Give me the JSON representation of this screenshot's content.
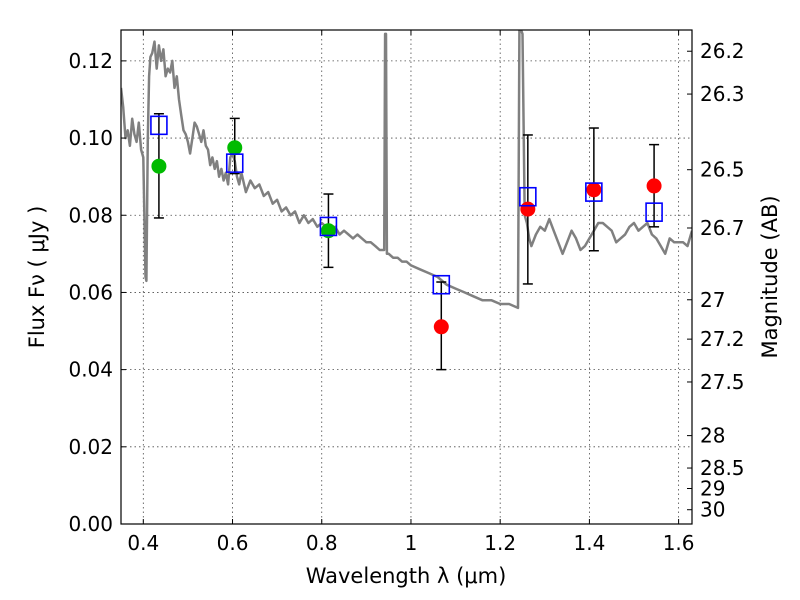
{
  "chart_data": {
    "type": "scatter",
    "title": "",
    "xlabel": "Wavelength  λ (μm)",
    "ylabel": "Flux  Fν  ( μJy )",
    "ylabel_right": "Magnitude (AB)",
    "xlim": [
      0.35,
      1.63
    ],
    "ylim": [
      0.0,
      0.128
    ],
    "grid": true,
    "x_ticks": [
      0.4,
      0.6,
      0.8,
      1.0,
      1.2,
      1.4,
      1.6
    ],
    "x_tick_labels": [
      "0.4",
      "0.6",
      "0.8",
      "1",
      "1.2",
      "1.4",
      "1.6"
    ],
    "y_ticks": [
      0.0,
      0.02,
      0.04,
      0.06,
      0.08,
      0.1,
      0.12
    ],
    "y_tick_labels": [
      "0.00",
      "0.02",
      "0.04",
      "0.06",
      "0.08",
      "0.10",
      "0.12"
    ],
    "right_ticks": [
      {
        "label": "26.2",
        "flux": 0.1225
      },
      {
        "label": "26.3",
        "flux": 0.1114
      },
      {
        "label": "26.5",
        "flux": 0.0918
      },
      {
        "label": "26.7",
        "flux": 0.0767
      },
      {
        "label": "27",
        "flux": 0.0581
      },
      {
        "label": "27.2",
        "flux": 0.0479
      },
      {
        "label": "27.5",
        "flux": 0.0368
      },
      {
        "label": "28",
        "flux": 0.0229
      },
      {
        "label": "28.5",
        "flux": 0.0145
      },
      {
        "label": "29",
        "flux": 0.0092
      },
      {
        "label": "30",
        "flux": 0.0037
      }
    ],
    "series": [
      {
        "color": "#808080",
        "kind": "line",
        "x": [
          0.35,
          0.355,
          0.36,
          0.365,
          0.37,
          0.375,
          0.38,
          0.385,
          0.39,
          0.395,
          0.4,
          0.405,
          0.407,
          0.41,
          0.413,
          0.416,
          0.42,
          0.425,
          0.43,
          0.435,
          0.44,
          0.445,
          0.45,
          0.455,
          0.46,
          0.465,
          0.47,
          0.475,
          0.48,
          0.485,
          0.49,
          0.495,
          0.5,
          0.505,
          0.51,
          0.515,
          0.52,
          0.525,
          0.53,
          0.535,
          0.54,
          0.545,
          0.55,
          0.555,
          0.56,
          0.565,
          0.57,
          0.575,
          0.58,
          0.585,
          0.59,
          0.595,
          0.6,
          0.605,
          0.61,
          0.615,
          0.62,
          0.63,
          0.64,
          0.65,
          0.66,
          0.67,
          0.68,
          0.69,
          0.7,
          0.71,
          0.72,
          0.73,
          0.74,
          0.75,
          0.76,
          0.77,
          0.78,
          0.79,
          0.8,
          0.81,
          0.82,
          0.83,
          0.84,
          0.85,
          0.86,
          0.87,
          0.88,
          0.89,
          0.9,
          0.91,
          0.92,
          0.93,
          0.94,
          0.942,
          0.944,
          0.946,
          0.948,
          0.95,
          0.96,
          0.97,
          0.98,
          0.99,
          1.0,
          1.02,
          1.04,
          1.06,
          1.08,
          1.1,
          1.12,
          1.14,
          1.16,
          1.18,
          1.2,
          1.22,
          1.24,
          1.243,
          1.245,
          1.247,
          1.25,
          1.255,
          1.26,
          1.265,
          1.27,
          1.28,
          1.29,
          1.3,
          1.31,
          1.32,
          1.33,
          1.34,
          1.35,
          1.36,
          1.37,
          1.38,
          1.39,
          1.4,
          1.41,
          1.42,
          1.43,
          1.44,
          1.45,
          1.46,
          1.47,
          1.48,
          1.49,
          1.5,
          1.51,
          1.52,
          1.53,
          1.54,
          1.55,
          1.56,
          1.57,
          1.58,
          1.59,
          1.6,
          1.61,
          1.62,
          1.63
        ],
        "y": [
          0.113,
          0.108,
          0.1,
          0.102,
          0.098,
          0.105,
          0.101,
          0.099,
          0.104,
          0.097,
          0.095,
          0.064,
          0.063,
          0.1,
          0.116,
          0.121,
          0.122,
          0.125,
          0.118,
          0.124,
          0.12,
          0.123,
          0.116,
          0.118,
          0.117,
          0.12,
          0.113,
          0.116,
          0.11,
          0.106,
          0.102,
          0.101,
          0.099,
          0.096,
          0.1,
          0.104,
          0.103,
          0.101,
          0.099,
          0.102,
          0.098,
          0.097,
          0.093,
          0.095,
          0.092,
          0.094,
          0.09,
          0.092,
          0.089,
          0.091,
          0.088,
          0.095,
          0.096,
          0.094,
          0.09,
          0.088,
          0.091,
          0.086,
          0.089,
          0.087,
          0.088,
          0.085,
          0.086,
          0.083,
          0.084,
          0.081,
          0.082,
          0.08,
          0.081,
          0.078,
          0.08,
          0.078,
          0.079,
          0.077,
          0.078,
          0.077,
          0.076,
          0.077,
          0.075,
          0.076,
          0.075,
          0.074,
          0.075,
          0.074,
          0.073,
          0.073,
          0.072,
          0.071,
          0.071,
          0.127,
          0.127,
          0.07,
          0.07,
          0.07,
          0.069,
          0.069,
          0.068,
          0.068,
          0.067,
          0.066,
          0.065,
          0.064,
          0.062,
          0.061,
          0.06,
          0.059,
          0.058,
          0.058,
          0.057,
          0.057,
          0.056,
          0.128,
          0.128,
          0.128,
          0.127,
          0.08,
          0.078,
          0.074,
          0.072,
          0.075,
          0.077,
          0.076,
          0.079,
          0.076,
          0.073,
          0.07,
          0.073,
          0.076,
          0.074,
          0.071,
          0.072,
          0.074,
          0.076,
          0.078,
          0.078,
          0.077,
          0.076,
          0.073,
          0.074,
          0.075,
          0.077,
          0.078,
          0.076,
          0.077,
          0.078,
          0.075,
          0.074,
          0.072,
          0.07,
          0.074,
          0.073,
          0.073,
          0.073,
          0.072,
          0.076
        ]
      },
      {
        "color": "#00bb00",
        "kind": "points",
        "x": [
          0.435,
          0.605,
          0.815
        ],
        "y": [
          0.0927,
          0.0975,
          0.076
        ]
      },
      {
        "color": "#ff0000",
        "kind": "points",
        "x": [
          1.068,
          1.262,
          1.41,
          1.545
        ],
        "y": [
          0.0511,
          0.0816,
          0.0866,
          0.0876
        ]
      },
      {
        "color": "#0000ff",
        "kind": "open-squares",
        "x": [
          0.435,
          0.605,
          0.815,
          1.068,
          1.262,
          1.41,
          1.545
        ],
        "y": [
          0.1033,
          0.0935,
          0.0771,
          0.062,
          0.0848,
          0.086,
          0.0808
        ]
      }
    ],
    "error_bars": [
      {
        "x": 0.435,
        "low": 0.0793,
        "high": 0.1063
      },
      {
        "x": 0.605,
        "low": 0.0908,
        "high": 0.1051
      },
      {
        "x": 0.815,
        "low": 0.0665,
        "high": 0.0855
      },
      {
        "x": 1.068,
        "low": 0.04,
        "high": 0.0627
      },
      {
        "x": 1.262,
        "low": 0.0622,
        "high": 0.1008
      },
      {
        "x": 1.41,
        "low": 0.0708,
        "high": 0.1026
      },
      {
        "x": 1.545,
        "low": 0.077,
        "high": 0.0983
      }
    ]
  }
}
